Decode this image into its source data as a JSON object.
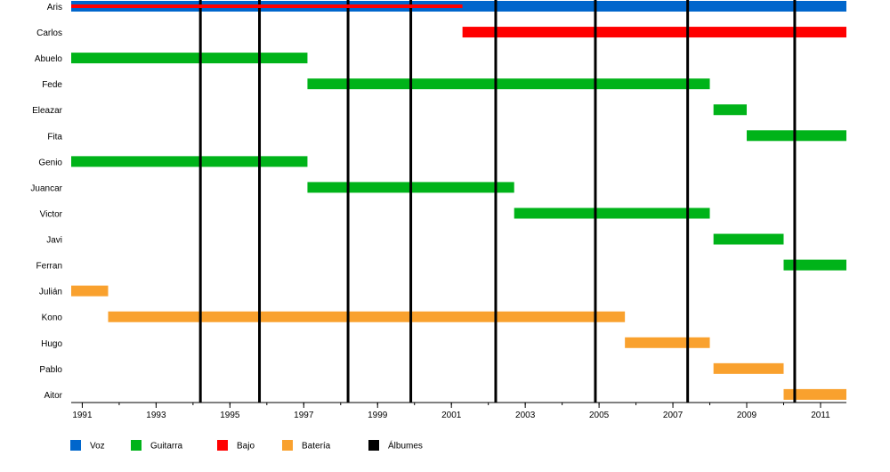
{
  "chart_data": {
    "type": "timeline",
    "title": "",
    "xlabel": "",
    "ylabel": "",
    "xlim": [
      1990.7,
      2011.7
    ],
    "x_ticks": [
      "1991",
      "1993",
      "1995",
      "1997",
      "1999",
      "2001",
      "2003",
      "2005",
      "2007",
      "2009",
      "2011"
    ],
    "members": [
      "Aris",
      "Carlos",
      "Abuelo",
      "Fede",
      "Eleazar",
      "Fita",
      "Genio",
      "Juancar",
      "Victor",
      "Javi",
      "Ferran",
      "Julián",
      "Kono",
      "Hugo",
      "Pablo",
      "Aitor"
    ],
    "roles": [
      {
        "key": "voz",
        "name": "Voz",
        "color": "#0066cc"
      },
      {
        "key": "guitarra",
        "name": "Guitarra",
        "color": "#00b319"
      },
      {
        "key": "bajo",
        "name": "Bajo",
        "color": "#ff0000"
      },
      {
        "key": "bateria",
        "name": "Batería",
        "color": "#f9a12e"
      },
      {
        "key": "albumes",
        "name": "Álbumes",
        "color": "#000000"
      }
    ],
    "periods": [
      {
        "member": "Aris",
        "role": "voz",
        "start": 1990.7,
        "end": 2011.7
      },
      {
        "member": "Aris",
        "role": "bajo",
        "start": 1990.7,
        "end": 2001.3,
        "thin": true
      },
      {
        "member": "Carlos",
        "role": "bajo",
        "start": 2001.3,
        "end": 2011.7
      },
      {
        "member": "Abuelo",
        "role": "guitarra",
        "start": 1990.7,
        "end": 1997.1
      },
      {
        "member": "Fede",
        "role": "guitarra",
        "start": 1997.1,
        "end": 2008.0
      },
      {
        "member": "Eleazar",
        "role": "guitarra",
        "start": 2008.1,
        "end": 2009.0
      },
      {
        "member": "Fita",
        "role": "guitarra",
        "start": 2009.0,
        "end": 2011.7
      },
      {
        "member": "Genio",
        "role": "guitarra",
        "start": 1990.7,
        "end": 1997.1
      },
      {
        "member": "Juancar",
        "role": "guitarra",
        "start": 1997.1,
        "end": 2002.7
      },
      {
        "member": "Victor",
        "role": "guitarra",
        "start": 2002.7,
        "end": 2008.0
      },
      {
        "member": "Javi",
        "role": "guitarra",
        "start": 2008.1,
        "end": 2010.0
      },
      {
        "member": "Ferran",
        "role": "guitarra",
        "start": 2010.0,
        "end": 2011.7
      },
      {
        "member": "Julián",
        "role": "bateria",
        "start": 1990.7,
        "end": 1991.7
      },
      {
        "member": "Kono",
        "role": "bateria",
        "start": 1991.7,
        "end": 2005.7
      },
      {
        "member": "Hugo",
        "role": "bateria",
        "start": 2005.7,
        "end": 2008.0
      },
      {
        "member": "Pablo",
        "role": "bateria",
        "start": 2008.1,
        "end": 2010.0
      },
      {
        "member": "Aitor",
        "role": "bateria",
        "start": 2010.0,
        "end": 2011.7
      }
    ],
    "albums": [
      1994.2,
      1995.8,
      1998.2,
      1999.9,
      2002.2,
      2004.9,
      2007.4,
      2010.3
    ],
    "grid": false,
    "legend_position": "bottom-left"
  }
}
